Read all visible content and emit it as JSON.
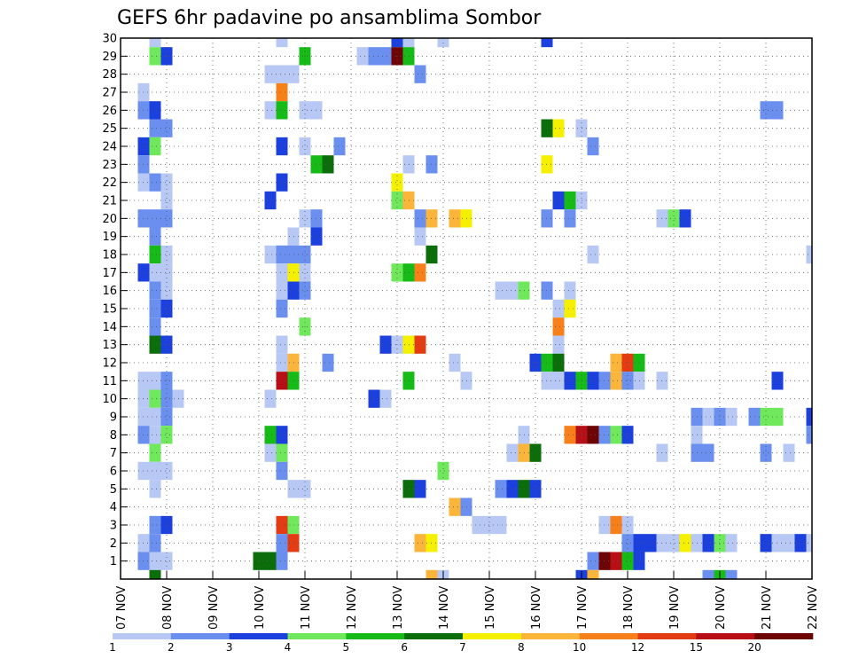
{
  "chart_data": {
    "type": "heatmap",
    "title": "GEFS 6hr padavine po ansamblima Sombor",
    "xlabel": "",
    "ylabel": "",
    "grid": true,
    "x_tick_labels": [
      "07 NOV",
      "08 NOV",
      "09 NOV",
      "10 NOV",
      "11 NOV",
      "12 NOV",
      "13 NOV",
      "14 NOV",
      "15 NOV",
      "16 NOV",
      "17 NOV",
      "18 NOV",
      "19 NOV",
      "20 NOV",
      "21 NOV",
      "22 NOV"
    ],
    "y_tick_labels": [
      "1",
      "2",
      "3",
      "4",
      "5",
      "6",
      "7",
      "8",
      "9",
      "10",
      "11",
      "12",
      "13",
      "14",
      "15",
      "16",
      "17",
      "18",
      "19",
      "20",
      "21",
      "22",
      "23",
      "24",
      "25",
      "26",
      "27",
      "28",
      "29",
      "30"
    ],
    "x_range": [
      0,
      60
    ],
    "y_range": [
      0,
      30
    ],
    "cell_unit": "6hr step (4 per day), ensemble member",
    "legend": {
      "position": "bottom",
      "thresholds": [
        "1",
        "2",
        "3",
        "4",
        "5",
        "6",
        "7",
        "8",
        "10",
        "12",
        "15",
        "20"
      ],
      "colors": [
        "#b8c8f5",
        "#6b8fef",
        "#1c40de",
        "#6fe85c",
        "#17bb17",
        "#0b6e0b",
        "#f5f000",
        "#fbb53a",
        "#f7801a",
        "#e33b12",
        "#b80f16",
        "#6e0505"
      ]
    },
    "cells": [
      [
        3,
        30,
        0
      ],
      [
        14,
        30,
        0
      ],
      [
        24,
        30,
        2
      ],
      [
        25,
        30,
        0
      ],
      [
        28,
        30,
        0
      ],
      [
        37,
        30,
        2
      ],
      [
        3,
        29,
        3
      ],
      [
        4,
        29,
        2
      ],
      [
        16,
        29,
        4
      ],
      [
        21,
        29,
        0
      ],
      [
        22,
        29,
        1
      ],
      [
        23,
        29,
        1
      ],
      [
        24,
        29,
        11
      ],
      [
        25,
        29,
        4
      ],
      [
        13,
        28,
        0
      ],
      [
        14,
        28,
        0
      ],
      [
        15,
        28,
        0
      ],
      [
        26,
        28,
        1
      ],
      [
        2,
        27,
        0
      ],
      [
        14,
        27,
        8
      ],
      [
        2,
        26,
        1
      ],
      [
        3,
        26,
        2
      ],
      [
        13,
        26,
        0
      ],
      [
        14,
        26,
        4
      ],
      [
        16,
        26,
        0
      ],
      [
        17,
        26,
        0
      ],
      [
        56,
        26,
        1
      ],
      [
        57,
        26,
        1
      ],
      [
        3,
        25,
        1
      ],
      [
        4,
        25,
        1
      ],
      [
        37,
        25,
        5
      ],
      [
        38,
        25,
        6
      ],
      [
        40,
        25,
        0
      ],
      [
        2,
        24,
        2
      ],
      [
        3,
        24,
        3
      ],
      [
        14,
        24,
        2
      ],
      [
        16,
        24,
        0
      ],
      [
        19,
        24,
        1
      ],
      [
        41,
        24,
        1
      ],
      [
        2,
        23,
        1
      ],
      [
        17,
        23,
        4
      ],
      [
        18,
        23,
        5
      ],
      [
        25,
        23,
        0
      ],
      [
        27,
        23,
        1
      ],
      [
        37,
        23,
        6
      ],
      [
        2,
        22,
        0
      ],
      [
        3,
        22,
        1
      ],
      [
        4,
        22,
        0
      ],
      [
        14,
        22,
        2
      ],
      [
        24,
        22,
        6
      ],
      [
        4,
        21,
        0
      ],
      [
        13,
        21,
        2
      ],
      [
        24,
        21,
        3
      ],
      [
        25,
        21,
        7
      ],
      [
        38,
        21,
        2
      ],
      [
        39,
        21,
        4
      ],
      [
        40,
        21,
        0
      ],
      [
        2,
        20,
        1
      ],
      [
        3,
        20,
        1
      ],
      [
        4,
        20,
        1
      ],
      [
        16,
        20,
        0
      ],
      [
        17,
        20,
        1
      ],
      [
        26,
        20,
        1
      ],
      [
        27,
        20,
        7
      ],
      [
        29,
        20,
        7
      ],
      [
        30,
        20,
        6
      ],
      [
        37,
        20,
        1
      ],
      [
        39,
        20,
        1
      ],
      [
        47,
        20,
        0
      ],
      [
        48,
        20,
        3
      ],
      [
        49,
        20,
        2
      ],
      [
        3,
        19,
        1
      ],
      [
        15,
        19,
        0
      ],
      [
        17,
        19,
        2
      ],
      [
        26,
        19,
        0
      ],
      [
        3,
        18,
        4
      ],
      [
        4,
        18,
        0
      ],
      [
        13,
        18,
        0
      ],
      [
        14,
        18,
        1
      ],
      [
        15,
        18,
        1
      ],
      [
        16,
        18,
        1
      ],
      [
        27,
        18,
        5
      ],
      [
        41,
        18,
        0
      ],
      [
        60,
        18,
        0
      ],
      [
        2,
        17,
        2
      ],
      [
        3,
        17,
        0
      ],
      [
        4,
        17,
        0
      ],
      [
        14,
        17,
        0
      ],
      [
        15,
        17,
        6
      ],
      [
        16,
        17,
        0
      ],
      [
        24,
        17,
        3
      ],
      [
        25,
        17,
        4
      ],
      [
        26,
        17,
        8
      ],
      [
        3,
        16,
        1
      ],
      [
        4,
        16,
        0
      ],
      [
        14,
        16,
        0
      ],
      [
        15,
        16,
        2
      ],
      [
        16,
        16,
        1
      ],
      [
        33,
        16,
        0
      ],
      [
        34,
        16,
        0
      ],
      [
        35,
        16,
        3
      ],
      [
        37,
        16,
        1
      ],
      [
        39,
        16,
        0
      ],
      [
        3,
        15,
        1
      ],
      [
        4,
        15,
        2
      ],
      [
        14,
        15,
        1
      ],
      [
        38,
        15,
        0
      ],
      [
        39,
        15,
        6
      ],
      [
        3,
        14,
        1
      ],
      [
        16,
        14,
        3
      ],
      [
        38,
        14,
        8
      ],
      [
        3,
        13,
        5
      ],
      [
        4,
        13,
        2
      ],
      [
        14,
        13,
        0
      ],
      [
        23,
        13,
        2
      ],
      [
        24,
        13,
        0
      ],
      [
        25,
        13,
        6
      ],
      [
        26,
        13,
        9
      ],
      [
        38,
        13,
        0
      ],
      [
        14,
        12,
        0
      ],
      [
        15,
        12,
        7
      ],
      [
        18,
        12,
        1
      ],
      [
        29,
        12,
        0
      ],
      [
        36,
        12,
        2
      ],
      [
        37,
        12,
        4
      ],
      [
        38,
        12,
        5
      ],
      [
        43,
        12,
        7
      ],
      [
        44,
        12,
        9
      ],
      [
        45,
        12,
        4
      ],
      [
        2,
        11,
        0
      ],
      [
        3,
        11,
        0
      ],
      [
        4,
        11,
        1
      ],
      [
        14,
        11,
        10
      ],
      [
        15,
        11,
        4
      ],
      [
        25,
        11,
        4
      ],
      [
        30,
        11,
        0
      ],
      [
        37,
        11,
        0
      ],
      [
        38,
        11,
        0
      ],
      [
        39,
        11,
        2
      ],
      [
        40,
        11,
        4
      ],
      [
        41,
        11,
        2
      ],
      [
        42,
        11,
        1
      ],
      [
        43,
        11,
        7
      ],
      [
        44,
        11,
        1
      ],
      [
        45,
        11,
        0
      ],
      [
        47,
        11,
        0
      ],
      [
        57,
        11,
        2
      ],
      [
        2,
        10,
        0
      ],
      [
        3,
        10,
        3
      ],
      [
        4,
        10,
        1
      ],
      [
        5,
        10,
        0
      ],
      [
        13,
        10,
        0
      ],
      [
        22,
        10,
        2
      ],
      [
        23,
        10,
        0
      ],
      [
        2,
        9,
        0
      ],
      [
        3,
        9,
        0
      ],
      [
        4,
        9,
        1
      ],
      [
        50,
        9,
        1
      ],
      [
        51,
        9,
        0
      ],
      [
        52,
        9,
        1
      ],
      [
        53,
        9,
        0
      ],
      [
        55,
        9,
        1
      ],
      [
        56,
        9,
        3
      ],
      [
        57,
        9,
        3
      ],
      [
        60,
        9,
        2
      ],
      [
        2,
        8,
        1
      ],
      [
        3,
        8,
        0
      ],
      [
        4,
        8,
        3
      ],
      [
        13,
        8,
        4
      ],
      [
        14,
        8,
        2
      ],
      [
        35,
        8,
        0
      ],
      [
        39,
        8,
        8
      ],
      [
        40,
        8,
        10
      ],
      [
        41,
        8,
        11
      ],
      [
        42,
        8,
        1
      ],
      [
        43,
        8,
        3
      ],
      [
        44,
        8,
        2
      ],
      [
        50,
        8,
        0
      ],
      [
        60,
        8,
        1
      ],
      [
        3,
        7,
        3
      ],
      [
        13,
        7,
        0
      ],
      [
        14,
        7,
        3
      ],
      [
        34,
        7,
        0
      ],
      [
        35,
        7,
        7
      ],
      [
        36,
        7,
        5
      ],
      [
        47,
        7,
        0
      ],
      [
        50,
        7,
        1
      ],
      [
        51,
        7,
        1
      ],
      [
        56,
        7,
        1
      ],
      [
        58,
        7,
        0
      ],
      [
        2,
        6,
        0
      ],
      [
        3,
        6,
        0
      ],
      [
        4,
        6,
        0
      ],
      [
        14,
        6,
        1
      ],
      [
        28,
        6,
        3
      ],
      [
        3,
        5,
        0
      ],
      [
        15,
        5,
        0
      ],
      [
        16,
        5,
        0
      ],
      [
        25,
        5,
        5
      ],
      [
        26,
        5,
        2
      ],
      [
        33,
        5,
        1
      ],
      [
        34,
        5,
        2
      ],
      [
        35,
        5,
        5
      ],
      [
        36,
        5,
        2
      ],
      [
        29,
        4,
        7
      ],
      [
        30,
        4,
        1
      ],
      [
        3,
        3,
        1
      ],
      [
        4,
        3,
        2
      ],
      [
        14,
        3,
        9
      ],
      [
        15,
        3,
        3
      ],
      [
        31,
        3,
        0
      ],
      [
        32,
        3,
        0
      ],
      [
        33,
        3,
        0
      ],
      [
        42,
        3,
        0
      ],
      [
        43,
        3,
        8
      ],
      [
        44,
        3,
        0
      ],
      [
        2,
        2,
        0
      ],
      [
        3,
        2,
        1
      ],
      [
        14,
        2,
        1
      ],
      [
        15,
        2,
        9
      ],
      [
        26,
        2,
        7
      ],
      [
        27,
        2,
        6
      ],
      [
        44,
        2,
        1
      ],
      [
        45,
        2,
        2
      ],
      [
        46,
        2,
        2
      ],
      [
        47,
        2,
        0
      ],
      [
        48,
        2,
        0
      ],
      [
        49,
        2,
        6
      ],
      [
        50,
        2,
        0
      ],
      [
        51,
        2,
        2
      ],
      [
        52,
        2,
        3
      ],
      [
        53,
        2,
        0
      ],
      [
        56,
        2,
        2
      ],
      [
        57,
        2,
        0
      ],
      [
        58,
        2,
        0
      ],
      [
        59,
        2,
        2
      ],
      [
        60,
        2,
        0
      ],
      [
        2,
        1,
        1
      ],
      [
        3,
        1,
        0
      ],
      [
        4,
        1,
        0
      ],
      [
        12,
        1,
        5
      ],
      [
        13,
        1,
        5
      ],
      [
        14,
        1,
        1
      ],
      [
        41,
        1,
        1
      ],
      [
        42,
        1,
        11
      ],
      [
        43,
        1,
        10
      ],
      [
        44,
        1,
        4
      ],
      [
        45,
        1,
        2
      ],
      [
        3,
        0,
        5
      ],
      [
        27,
        0,
        7
      ],
      [
        28,
        0,
        0
      ],
      [
        40,
        0,
        2
      ],
      [
        41,
        0,
        7
      ],
      [
        51,
        0,
        1
      ],
      [
        52,
        0,
        4
      ],
      [
        53,
        0,
        1
      ]
    ]
  }
}
